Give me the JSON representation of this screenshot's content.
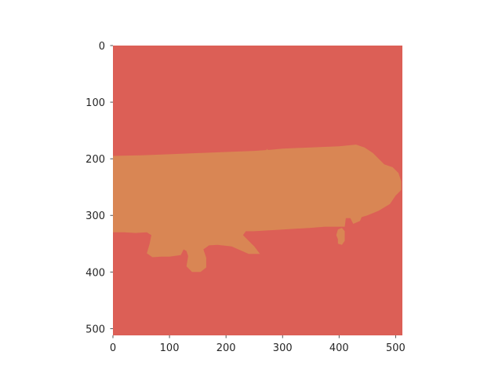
{
  "image": {
    "grid_size": [
      512,
      512
    ],
    "colors": {
      "background": "#dc5f56",
      "region": "#d98654"
    },
    "region_outline": [
      [
        0,
        195
      ],
      [
        50,
        194
      ],
      [
        100,
        192
      ],
      [
        150,
        190
      ],
      [
        200,
        188
      ],
      [
        250,
        186
      ],
      [
        280,
        184
      ],
      [
        300,
        182
      ],
      [
        350,
        180
      ],
      [
        400,
        178
      ],
      [
        430,
        175
      ],
      [
        445,
        180
      ],
      [
        460,
        190
      ],
      [
        470,
        200
      ],
      [
        480,
        210
      ],
      [
        495,
        215
      ],
      [
        505,
        225
      ],
      [
        510,
        240
      ],
      [
        510,
        255
      ],
      [
        500,
        265
      ],
      [
        490,
        280
      ],
      [
        470,
        292
      ],
      [
        450,
        300
      ],
      [
        440,
        303
      ],
      [
        437,
        310
      ],
      [
        425,
        315
      ],
      [
        420,
        305
      ],
      [
        412,
        305
      ],
      [
        410,
        320
      ],
      [
        375,
        320
      ],
      [
        350,
        322
      ],
      [
        300,
        325
      ],
      [
        250,
        328
      ],
      [
        235,
        328
      ],
      [
        230,
        335
      ],
      [
        240,
        345
      ],
      [
        250,
        355
      ],
      [
        260,
        368
      ],
      [
        240,
        368
      ],
      [
        210,
        355
      ],
      [
        185,
        352
      ],
      [
        170,
        353
      ],
      [
        160,
        360
      ],
      [
        165,
        375
      ],
      [
        165,
        392
      ],
      [
        155,
        400
      ],
      [
        140,
        400
      ],
      [
        130,
        390
      ],
      [
        133,
        372
      ],
      [
        130,
        363
      ],
      [
        125,
        360
      ],
      [
        120,
        370
      ],
      [
        100,
        373
      ],
      [
        85,
        373
      ],
      [
        70,
        374
      ],
      [
        60,
        367
      ],
      [
        65,
        350
      ],
      [
        68,
        335
      ],
      [
        60,
        330
      ],
      [
        40,
        331
      ],
      [
        20,
        330
      ],
      [
        0,
        330
      ]
    ],
    "extra_patches": [
      [
        [
          398,
          342
        ],
        [
          395,
          335
        ],
        [
          398,
          325
        ],
        [
          405,
          322
        ],
        [
          410,
          328
        ],
        [
          410,
          345
        ],
        [
          405,
          352
        ],
        [
          398,
          350
        ]
      ],
      [
        [
          270,
          195
        ],
        [
          272,
          182
        ],
        [
          278,
          190
        ]
      ]
    ]
  },
  "axes": {
    "x_ticks": [
      0,
      100,
      200,
      300,
      400,
      500
    ],
    "y_ticks": [
      0,
      100,
      200,
      300,
      400,
      500
    ]
  }
}
